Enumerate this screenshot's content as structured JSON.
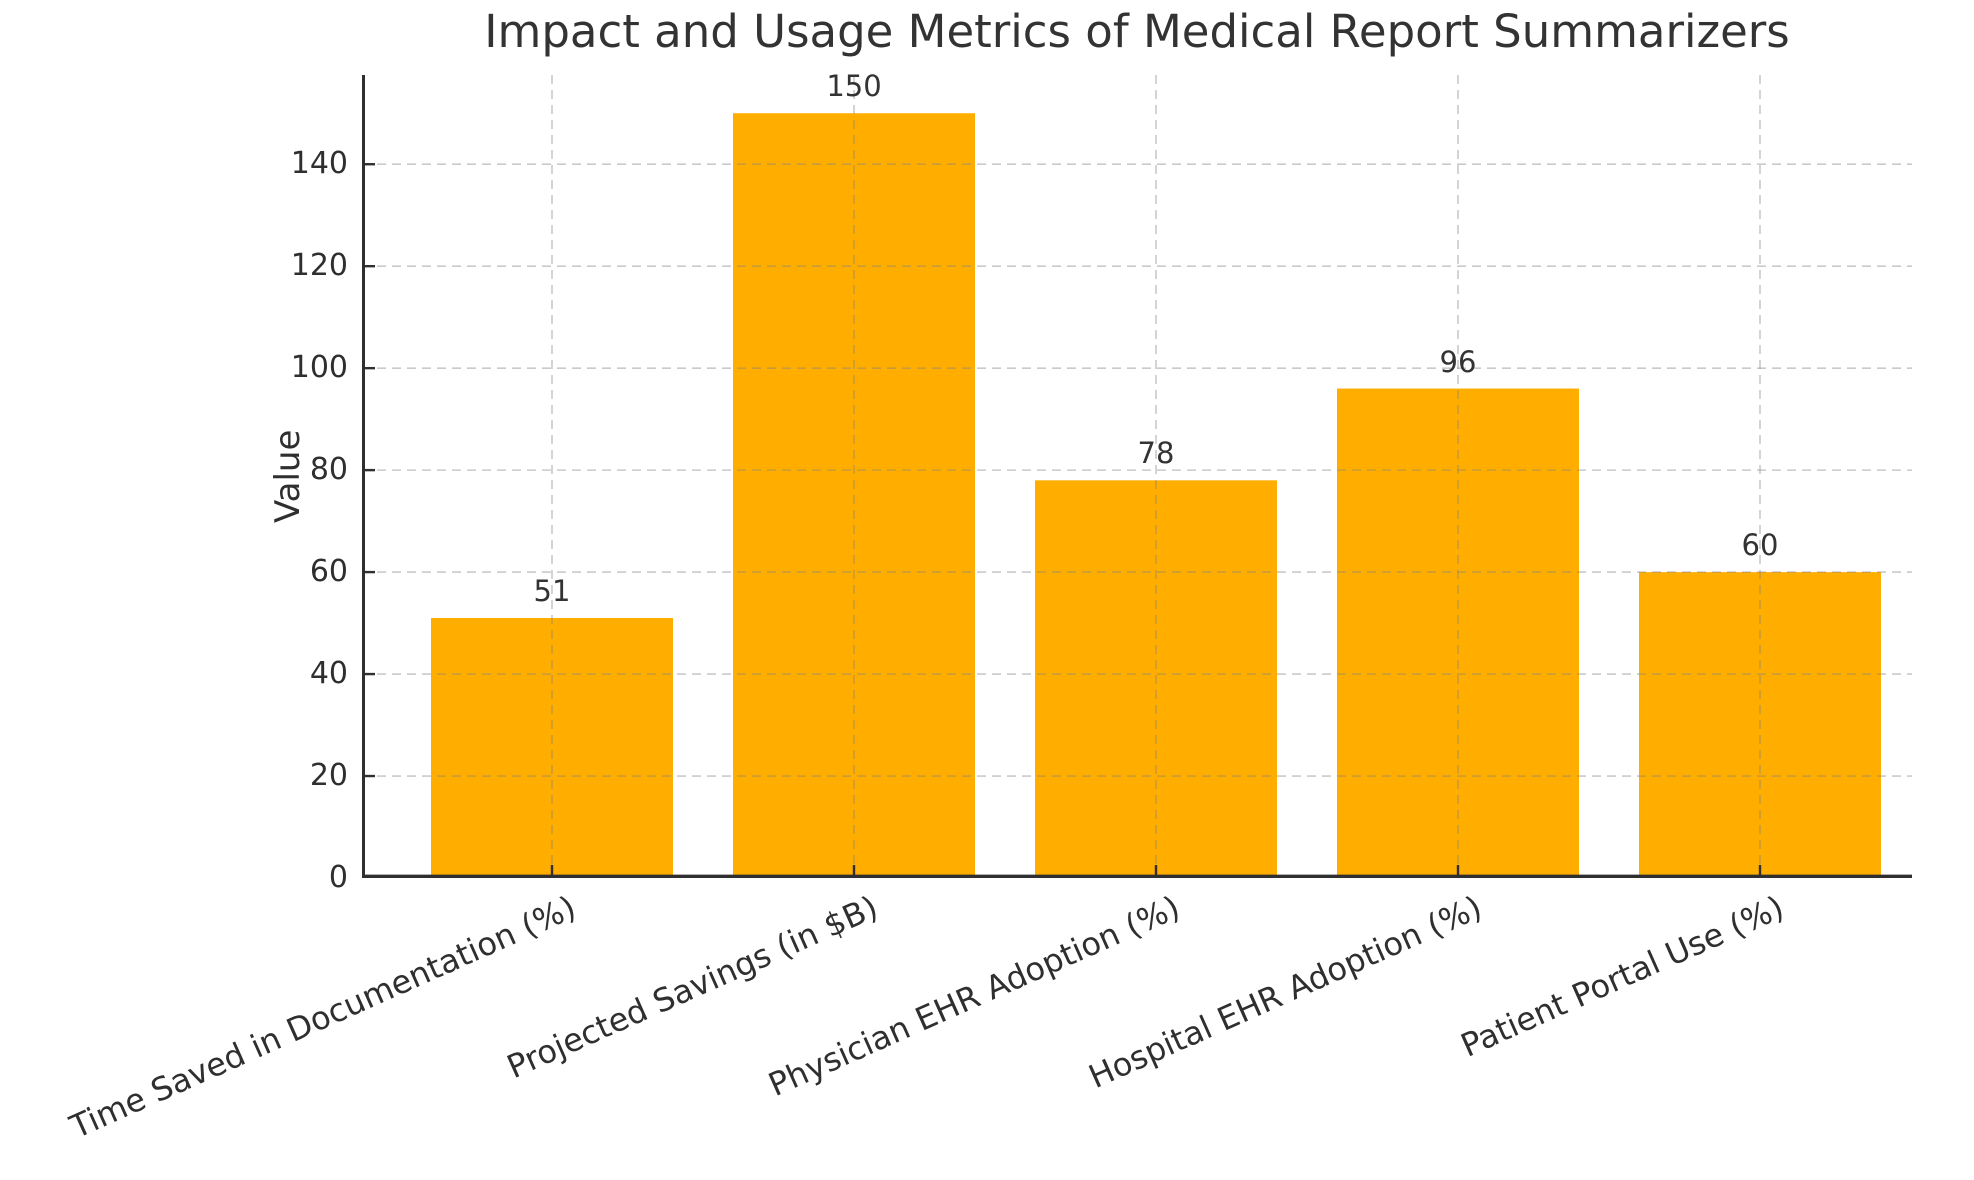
{
  "chart_data": {
    "type": "bar",
    "title": "Impact and Usage Metrics of Medical Report Summarizers",
    "xlabel": "",
    "ylabel": "Value",
    "categories": [
      "Time Saved in Documentation (%)",
      "Projected Savings (in $B)",
      "Physician EHR Adoption (%)",
      "Hospital EHR Adoption (%)",
      "Patient Portal Use (%)"
    ],
    "values": [
      51,
      150,
      78,
      96,
      60
    ],
    "bar_value_labels": [
      "51",
      "150",
      "78",
      "96",
      "60"
    ],
    "yticks": [
      0,
      20,
      40,
      60,
      80,
      100,
      120,
      140
    ],
    "ylim": [
      0,
      157.5
    ],
    "x_tick_rotation_deg": 24,
    "grid": "dashed, horizontal and vertical, drawn over bars",
    "legend": "none",
    "colors": {
      "bar": "#FFAE00",
      "grid": "#c9c9c9",
      "spine": "#2f2f2f",
      "tick_text": "#2f2f2f",
      "title_text": "#333333",
      "background": "#ffffff"
    }
  }
}
